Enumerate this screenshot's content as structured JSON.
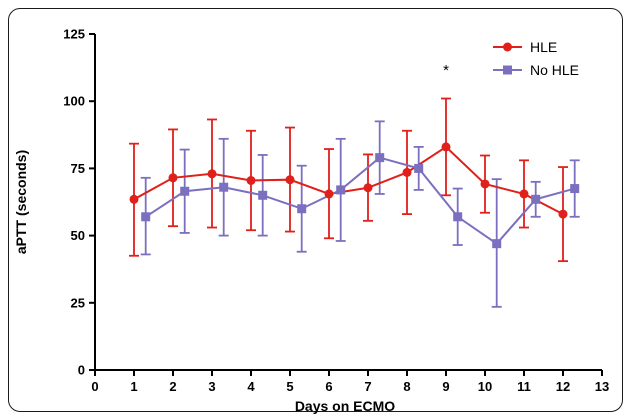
{
  "chart_data": {
    "type": "line",
    "title": "",
    "xlabel": "Days on ECMO",
    "ylabel": "aPTT (seconds)",
    "xlim": [
      0,
      13
    ],
    "ylim": [
      0,
      125
    ],
    "xticks": [
      0,
      1,
      2,
      3,
      4,
      5,
      6,
      7,
      8,
      9,
      10,
      11,
      12,
      13
    ],
    "yticks": [
      0,
      25,
      50,
      75,
      100,
      125
    ],
    "grid": false,
    "legend_position": "top-right",
    "annotation": {
      "text": "*",
      "x": 9,
      "y": 112
    },
    "series": [
      {
        "name": "HLE",
        "color": "#e0201b",
        "marker": "circle",
        "x": [
          1,
          2,
          3,
          4,
          5,
          6,
          7,
          8,
          9,
          10,
          11,
          12
        ],
        "y": [
          63.5,
          71.5,
          73,
          70.5,
          70.8,
          65.5,
          67.8,
          73.5,
          83,
          69.2,
          65.5,
          58
        ],
        "err_low": [
          42.5,
          53.5,
          53,
          52,
          51.5,
          49,
          55.5,
          58,
          65,
          58.5,
          53,
          40.5
        ],
        "err_high": [
          84.2,
          89.5,
          93.2,
          89,
          90.2,
          82.2,
          80.2,
          89,
          101,
          79.8,
          78,
          75.5
        ]
      },
      {
        "name": "No HLE",
        "color": "#7b6fbf",
        "marker": "square",
        "x": [
          1.3,
          2.3,
          3.3,
          4.3,
          5.3,
          6.3,
          7.3,
          8.3,
          9.3,
          10.3,
          11.3,
          12.3
        ],
        "y": [
          57,
          66.5,
          68,
          65,
          60,
          67,
          79,
          75,
          57,
          47,
          63.5,
          67.5
        ],
        "err_low": [
          43,
          51,
          50,
          50,
          44,
          48,
          65.5,
          67,
          46.5,
          23.5,
          57,
          57
        ],
        "err_high": [
          71.5,
          82,
          86,
          80,
          76,
          86,
          92.5,
          83,
          67.5,
          71,
          70,
          78
        ]
      }
    ]
  }
}
